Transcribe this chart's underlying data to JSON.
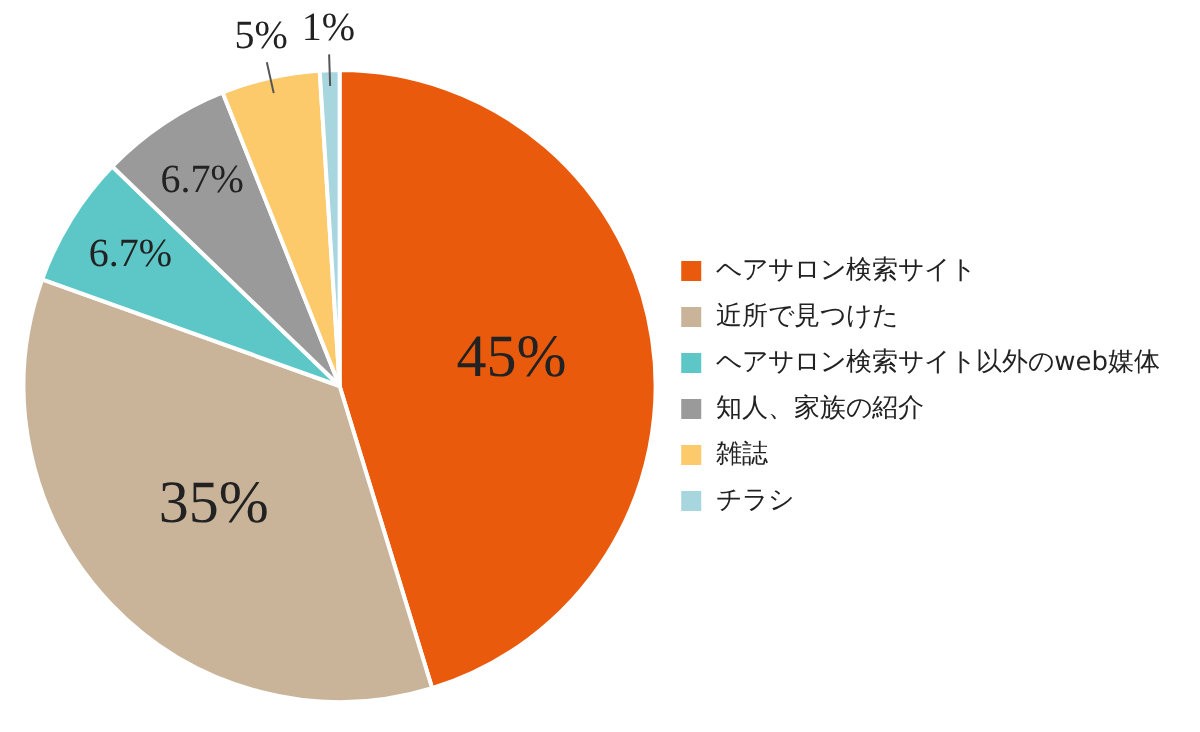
{
  "chart_data": {
    "type": "pie",
    "categories": [
      "ヘアサロン検索サイト",
      "近所で見つけた",
      "ヘアサロン検索サイト以外のweb媒体",
      "知人、家族の紹介",
      "雑誌",
      "チラシ"
    ],
    "values": [
      45,
      35,
      6.7,
      6.7,
      5,
      1
    ],
    "colors": [
      "#ea5a0c",
      "#c9b49a",
      "#5cc7c6",
      "#9a9a9a",
      "#fcc96b",
      "#a8d6df"
    ],
    "value_labels": [
      "45%",
      "35%",
      "6.7%",
      "6.7%",
      "5%",
      "1%"
    ],
    "legend": "right"
  }
}
